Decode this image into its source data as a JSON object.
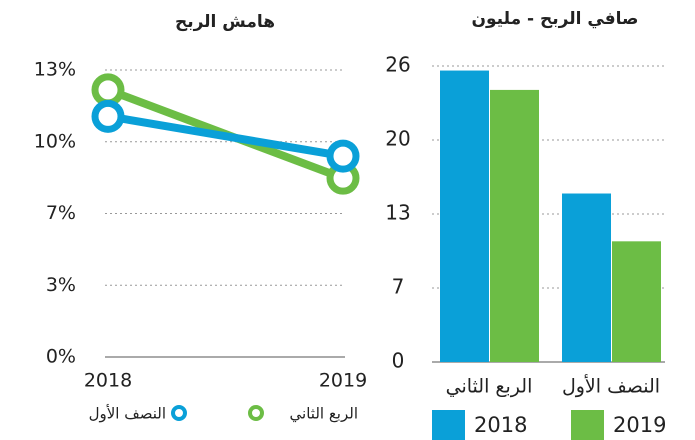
{
  "chart_data": [
    {
      "type": "line",
      "title": "هامش الربح",
      "x": [
        "2018",
        "2019"
      ],
      "series": [
        {
          "name": "النصف الأول",
          "color": "#0aa0d8",
          "values": [
            10.9,
            9.1
          ]
        },
        {
          "name": "الربع الثاني",
          "color": "#6cbd45",
          "values": [
            12.1,
            8.1
          ]
        }
      ],
      "ylim": [
        0,
        13
      ],
      "yticks": [
        {
          "value": 0,
          "label": "0%"
        },
        {
          "value": 3.25,
          "label": "3%"
        },
        {
          "value": 6.5,
          "label": "7%"
        },
        {
          "value": 9.75,
          "label": "10%"
        },
        {
          "value": 13,
          "label": "13%"
        }
      ],
      "grid": true
    },
    {
      "type": "bar",
      "title": "صافي الربح - مليون",
      "categories": [
        "الربع الثاني",
        "النصف الأول"
      ],
      "series": [
        {
          "name": "2018",
          "color": "#0aa0d8",
          "values": [
            25.6,
            14.8
          ]
        },
        {
          "name": "2019",
          "color": "#6cbd45",
          "values": [
            23.9,
            10.6
          ]
        }
      ],
      "ylim": [
        0,
        26
      ],
      "yticks": [
        0,
        {
          "value": 6.5,
          "label": "7"
        },
        13,
        {
          "value": 19.5,
          "label": "20"
        },
        26
      ],
      "grid": true
    }
  ]
}
